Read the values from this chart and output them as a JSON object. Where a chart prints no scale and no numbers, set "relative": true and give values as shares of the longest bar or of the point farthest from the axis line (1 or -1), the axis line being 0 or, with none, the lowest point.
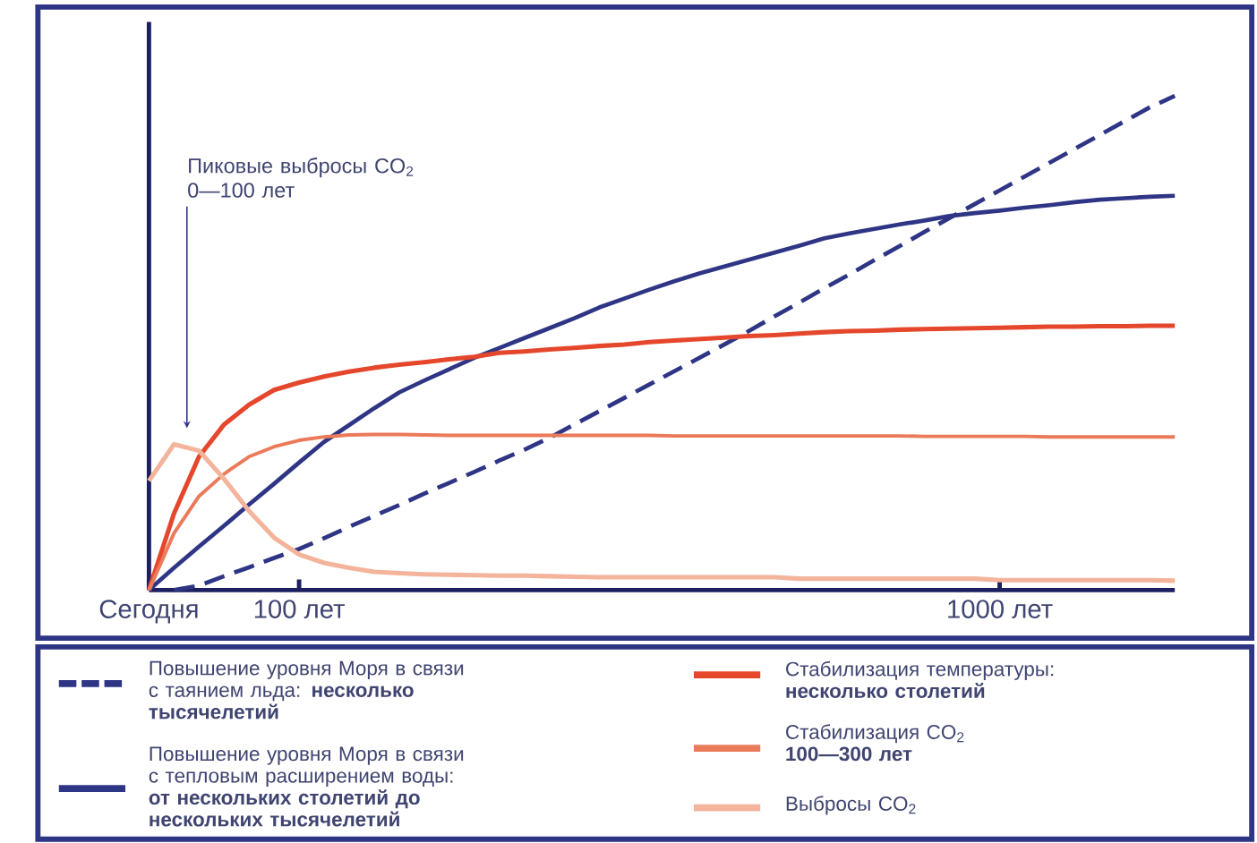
{
  "chart_data": {
    "type": "line",
    "relative": true,
    "categories": [
      "Сегодня",
      null,
      null,
      null,
      null,
      null,
      "100 лет",
      null,
      null,
      null,
      null,
      null,
      null,
      null,
      null,
      null,
      null,
      null,
      null,
      null,
      null,
      null,
      null,
      null,
      null,
      null,
      null,
      null,
      null,
      null,
      null,
      null,
      null,
      null,
      "1000 лет",
      null,
      null,
      null,
      null,
      null,
      null,
      null
    ],
    "legend": "bottom",
    "marker": "none",
    "annotations": [
      "Пиковые выбросы CO$_{2}$ 0—100 лет"
    ],
    "series": [
      {
        "name": "Повышение уровня Моря в связи с таянием льда: **несколько тысячелетий**",
        "color": "#2e3585",
        "line_style": "dashed",
        "values": [
          null,
          0,
          0.009,
          0.028,
          0.046,
          0.065,
          0.083,
          0.105,
          0.128,
          0.15,
          0.172,
          0.195,
          0.217,
          0.239,
          0.262,
          0.284,
          0.308,
          0.335,
          0.362,
          0.389,
          0.416,
          0.443,
          0.47,
          0.497,
          0.525,
          0.554,
          0.582,
          0.611,
          0.639,
          0.668,
          0.696,
          0.725,
          0.753,
          0.781,
          0.809,
          0.837,
          0.865,
          0.893,
          0.921,
          0.949,
          0.977,
          1
        ]
      },
      {
        "name": "Повышение уровня Моря в связи с тепловым расширением воды: **от нескольких столетий до нескольких тысячелетий**",
        "color": "#2e3585",
        "line_style": "solid",
        "values": [
          0,
          0.045,
          0.088,
          0.13,
          0.173,
          0.215,
          0.258,
          0.3,
          0.334,
          0.368,
          0.4,
          0.424,
          0.447,
          0.47,
          0.49,
          0.51,
          0.53,
          0.55,
          0.572,
          0.59,
          0.608,
          0.625,
          0.641,
          0.655,
          0.669,
          0.683,
          0.697,
          0.712,
          0.722,
          0.731,
          0.74,
          0.748,
          0.757,
          0.763,
          0.768,
          0.774,
          0.779,
          0.785,
          0.79,
          0.793,
          0.796,
          0.798
        ]
      },
      {
        "name": "Стабилизация температуры: **несколько столетий**",
        "color": "#e5472c",
        "line_style": "solid",
        "values": [
          0,
          0.155,
          0.27,
          0.335,
          0.375,
          0.405,
          0.42,
          0.432,
          0.442,
          0.45,
          0.456,
          0.461,
          0.467,
          0.472,
          0.48,
          0.483,
          0.487,
          0.49,
          0.494,
          0.497,
          0.502,
          0.505,
          0.508,
          0.511,
          0.514,
          0.516,
          0.519,
          0.522,
          0.524,
          0.525,
          0.527,
          0.528,
          0.529,
          0.53,
          0.531,
          0.532,
          0.533,
          0.533,
          0.534,
          0.534,
          0.535,
          0.535
        ]
      },
      {
        "name": "Стабилизация CO$_{2}$ **100—300 лет**",
        "color": "#eb7a5a",
        "line_style": "solid",
        "values": [
          0,
          0.115,
          0.19,
          0.235,
          0.27,
          0.29,
          0.303,
          0.31,
          0.314,
          0.315,
          0.315,
          0.314,
          0.313,
          0.313,
          0.313,
          0.313,
          0.313,
          0.313,
          0.313,
          0.313,
          0.313,
          0.312,
          0.312,
          0.312,
          0.312,
          0.312,
          0.312,
          0.312,
          0.312,
          0.312,
          0.312,
          0.311,
          0.311,
          0.311,
          0.311,
          0.311,
          0.31,
          0.31,
          0.31,
          0.31,
          0.31,
          0.31
        ]
      },
      {
        "name": "Выбросы CO$_{2}$",
        "color": "#f4b49b",
        "line_style": "solid",
        "values": [
          0.221,
          0.295,
          0.282,
          0.225,
          0.16,
          0.106,
          0.072,
          0.055,
          0.045,
          0.037,
          0.034,
          0.032,
          0.031,
          0.03,
          0.029,
          0.029,
          0.028,
          0.027,
          0.026,
          0.026,
          0.026,
          0.026,
          0.026,
          0.026,
          0.026,
          0.026,
          0.023,
          0.023,
          0.023,
          0.023,
          0.023,
          0.023,
          0.023,
          0.023,
          0.02,
          0.02,
          0.02,
          0.02,
          0.02,
          0.02,
          0.02,
          0.019
        ]
      }
    ]
  }
}
